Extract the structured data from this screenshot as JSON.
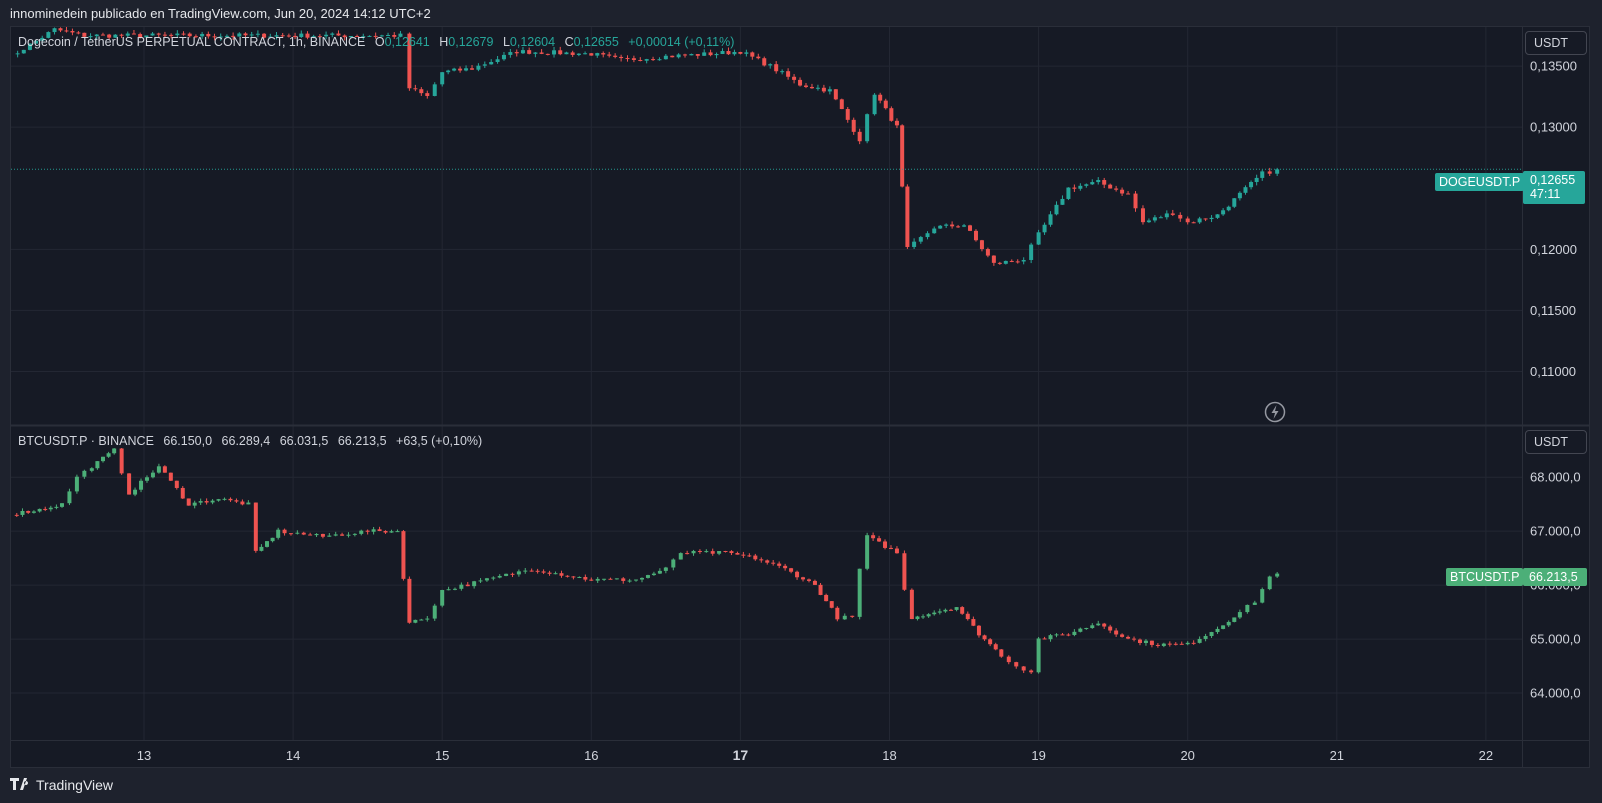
{
  "header": {
    "text": "innominedein publicado en TradingView.com, Jun 20, 2024 14:12 UTC+2"
  },
  "footer": {
    "brand": "TradingView",
    "logo_icon": "tradingview-logo-icon"
  },
  "colors": {
    "up": "#26a69a",
    "down": "#ef5350",
    "btc_up": "#4caf78",
    "grid": "#232733",
    "text": "#d1d4dc"
  },
  "top_panel": {
    "legend": {
      "symbol": "Dogecoin / TetherUS PERPETUAL CONTRACT, 1h, BINANCE",
      "o_label": "O",
      "o": "0,12641",
      "h_label": "H",
      "h": "0,12679",
      "l_label": "L",
      "l": "0,12604",
      "c_label": "C",
      "c": "0,12655",
      "change": "+0,00014 (+0,11%)"
    },
    "unit": "USDT",
    "symbol_tag": "DOGEUSDT.P",
    "last_price": "0,12655",
    "countdown": "47:11"
  },
  "bottom_panel": {
    "legend": {
      "symbol": "BTCUSDT.P · BINANCE",
      "o": "66.150,0",
      "h": "66.289,4",
      "l": "66.031,5",
      "c": "66.213,5",
      "change": "+63,5 (+0,10%)"
    },
    "unit": "USDT",
    "symbol_tag": "BTCUSDT.P",
    "last_price": "66.213,5"
  },
  "chart_data": [
    {
      "type": "candlestick",
      "title": "Dogecoin / TetherUS PERPETUAL CONTRACT, 1h, BINANCE",
      "x_tick_labels": [
        "13",
        "14",
        "15",
        "16",
        "17",
        "18",
        "19",
        "20",
        "21",
        "22"
      ],
      "y_tick_labels": [
        "0,13500",
        "0,13000",
        "0,12000",
        "0,11500",
        "0,11000"
      ],
      "y_ticks": [
        0.135,
        0.13,
        0.12,
        0.115,
        0.11
      ],
      "ylim": [
        0.1057,
        0.1382
      ],
      "grid": true,
      "last_value": 0.12655,
      "waypoints_close": [
        [
          12.07,
          0.1355
        ],
        [
          12.4,
          0.138
        ],
        [
          12.6,
          0.1375
        ],
        [
          14.72,
          0.1375
        ],
        [
          14.78,
          0.1332
        ],
        [
          14.9,
          0.1325
        ],
        [
          15.0,
          0.1345
        ],
        [
          15.2,
          0.1348
        ],
        [
          15.5,
          0.1362
        ],
        [
          16.0,
          0.136
        ],
        [
          16.2,
          0.1355
        ],
        [
          16.5,
          0.1358
        ],
        [
          16.8,
          0.136
        ],
        [
          17.0,
          0.1362
        ],
        [
          17.2,
          0.135
        ],
        [
          17.4,
          0.1335
        ],
        [
          17.6,
          0.133
        ],
        [
          17.8,
          0.129
        ],
        [
          17.9,
          0.1328
        ],
        [
          18.05,
          0.13
        ],
        [
          18.12,
          0.12
        ],
        [
          18.3,
          0.1218
        ],
        [
          18.5,
          0.122
        ],
        [
          18.7,
          0.1188
        ],
        [
          18.9,
          0.1192
        ],
        [
          19.0,
          0.1212
        ],
        [
          19.2,
          0.125
        ],
        [
          19.4,
          0.1255
        ],
        [
          19.6,
          0.1245
        ],
        [
          19.7,
          0.1222
        ],
        [
          19.9,
          0.123
        ],
        [
          20.0,
          0.1222
        ],
        [
          20.2,
          0.1228
        ],
        [
          20.35,
          0.1245
        ],
        [
          20.5,
          0.1262
        ],
        [
          20.6,
          0.12655
        ]
      ]
    },
    {
      "type": "candlestick",
      "title": "BTCUSDT.P · BINANCE",
      "x_tick_labels": [
        "13",
        "14",
        "15",
        "16",
        "17",
        "18",
        "19",
        "20",
        "21",
        "22"
      ],
      "y_tick_labels": [
        "68.000,0",
        "67.000,0",
        "66.000,0",
        "65.000,0",
        "64.000,0"
      ],
      "y_ticks": [
        68000,
        67000,
        66000,
        65000,
        64000
      ],
      "ylim": [
        63130,
        68930
      ],
      "grid": true,
      "last_value": 66213.5,
      "waypoints_close": [
        [
          12.07,
          67300
        ],
        [
          12.3,
          67400
        ],
        [
          12.45,
          67500
        ],
        [
          12.55,
          68000
        ],
        [
          12.65,
          68200
        ],
        [
          12.8,
          68500
        ],
        [
          12.9,
          67700
        ],
        [
          13.1,
          68200
        ],
        [
          13.3,
          67500
        ],
        [
          13.5,
          67600
        ],
        [
          13.7,
          67500
        ],
        [
          13.75,
          66600
        ],
        [
          13.9,
          67000
        ],
        [
          14.2,
          66900
        ],
        [
          14.5,
          67000
        ],
        [
          14.7,
          67000
        ],
        [
          14.78,
          65300
        ],
        [
          14.9,
          65400
        ],
        [
          15.0,
          65900
        ],
        [
          15.3,
          66100
        ],
        [
          15.6,
          66300
        ],
        [
          15.8,
          66200
        ],
        [
          16.0,
          66100
        ],
        [
          16.3,
          66100
        ],
        [
          16.5,
          66300
        ],
        [
          16.6,
          66600
        ],
        [
          16.9,
          66600
        ],
        [
          17.1,
          66500
        ],
        [
          17.3,
          66300
        ],
        [
          17.5,
          66000
        ],
        [
          17.65,
          65400
        ],
        [
          17.75,
          65400
        ],
        [
          17.8,
          66300
        ],
        [
          17.85,
          66900
        ],
        [
          18.05,
          66600
        ],
        [
          18.1,
          65900
        ],
        [
          18.15,
          65400
        ],
        [
          18.3,
          65500
        ],
        [
          18.45,
          65600
        ],
        [
          18.6,
          65100
        ],
        [
          18.75,
          64700
        ],
        [
          18.85,
          64500
        ],
        [
          18.95,
          64400
        ],
        [
          19.0,
          65000
        ],
        [
          19.2,
          65100
        ],
        [
          19.4,
          65300
        ],
        [
          19.6,
          65000
        ],
        [
          19.8,
          64900
        ],
        [
          20.0,
          64900
        ],
        [
          20.2,
          65200
        ],
        [
          20.35,
          65500
        ],
        [
          20.45,
          65700
        ],
        [
          20.55,
          66150
        ],
        [
          20.6,
          66213.5
        ]
      ]
    }
  ]
}
